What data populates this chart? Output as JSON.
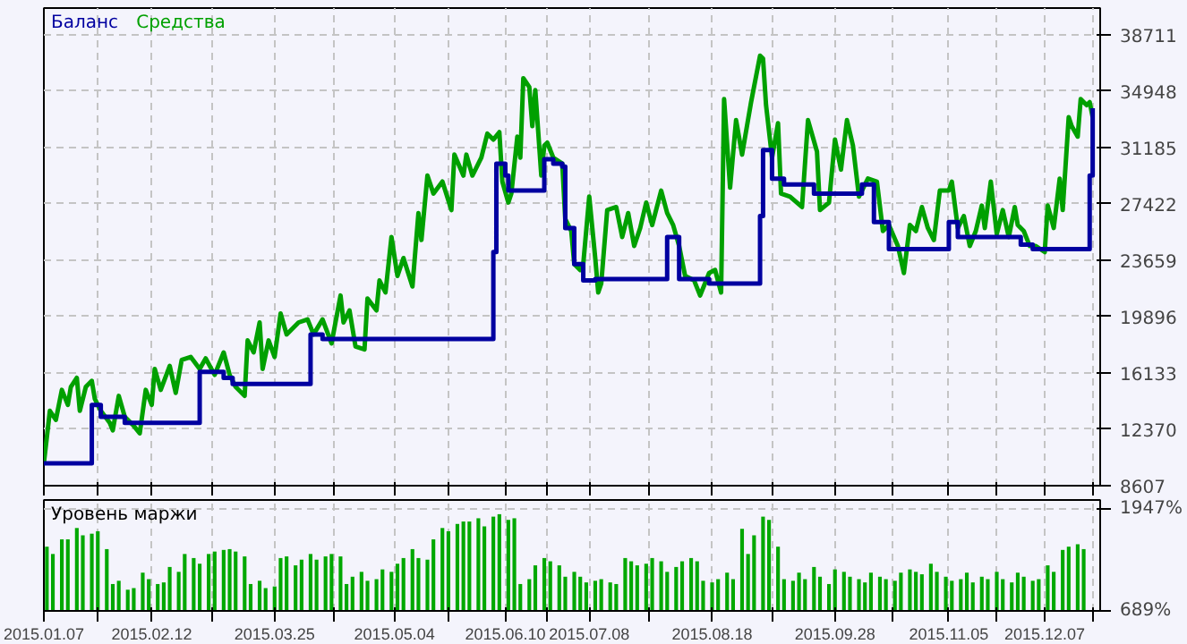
{
  "chart_data": [
    {
      "type": "line",
      "grid": true,
      "tick_labels": "y",
      "xlim": [
        "2015-01-07",
        "2015-12-25T12:00"
      ],
      "ylim": [
        8607,
        40480
      ],
      "xticks": [
        {
          "value": "2015-01-07",
          "label": null
        },
        {
          "value": "2015-01-25",
          "label": null
        },
        {
          "value": "2015-02-12",
          "label": null
        },
        {
          "value": "2015-03-04",
          "label": null
        },
        {
          "value": "2015-03-25",
          "label": null
        },
        {
          "value": "2015-04-14",
          "label": null
        },
        {
          "value": "2015-05-04",
          "label": null
        },
        {
          "value": "2015-05-22",
          "label": null
        },
        {
          "value": "2015-06-10",
          "label": null
        },
        {
          "value": "2015-06-24",
          "label": null
        },
        {
          "value": "2015-07-08",
          "label": null
        },
        {
          "value": "2015-07-28",
          "label": null
        },
        {
          "value": "2015-08-18",
          "label": null
        },
        {
          "value": "2015-09-07",
          "label": null
        },
        {
          "value": "2015-09-28",
          "label": null
        },
        {
          "value": "2015-10-17",
          "label": null
        },
        {
          "value": "2015-11-05",
          "label": null
        },
        {
          "value": "2015-11-21",
          "label": null
        },
        {
          "value": "2015-12-07",
          "label": null
        },
        {
          "value": "2015-12-23",
          "label": null
        }
      ],
      "yticks": [
        8607,
        12370,
        16133,
        19896,
        23659,
        27422,
        31185,
        34948,
        38711
      ],
      "series": [
        {
          "name": "Средства",
          "type": "line",
          "color": "#00a000",
          "x": [
            "2015-01-07",
            "2015-01-09",
            "2015-01-11",
            "2015-01-13",
            "2015-01-15",
            "2015-01-16",
            "2015-01-18",
            "2015-01-19",
            "2015-01-21",
            "2015-01-23",
            "2015-01-24",
            "2015-01-26",
            "2015-01-29",
            "2015-01-30",
            "2015-02-01",
            "2015-02-03",
            "2015-02-06",
            "2015-02-08",
            "2015-02-10",
            "2015-02-12",
            "2015-02-13",
            "2015-02-15",
            "2015-02-18",
            "2015-02-20",
            "2015-02-22",
            "2015-02-25",
            "2015-02-28",
            "2015-03-02",
            "2015-03-05",
            "2015-03-08",
            "2015-03-10",
            "2015-03-12",
            "2015-03-15",
            "2015-03-16",
            "2015-03-18",
            "2015-03-20",
            "2015-03-21",
            "2015-03-23",
            "2015-03-25",
            "2015-03-27",
            "2015-03-29",
            "2015-04-02",
            "2015-04-05",
            "2015-04-07",
            "2015-04-10",
            "2015-04-13",
            "2015-04-16",
            "2015-04-17",
            "2015-04-19",
            "2015-04-21",
            "2015-04-24",
            "2015-04-25",
            "2015-04-28",
            "2015-04-29",
            "2015-05-01",
            "2015-05-03",
            "2015-05-05",
            "2015-05-07",
            "2015-05-10",
            "2015-05-12",
            "2015-05-13",
            "2015-05-15",
            "2015-05-17",
            "2015-05-20",
            "2015-05-23",
            "2015-05-24",
            "2015-05-27",
            "2015-05-28",
            "2015-05-30",
            "2015-06-02",
            "2015-06-04",
            "2015-06-06",
            "2015-06-08",
            "2015-06-09",
            "2015-06-11",
            "2015-06-12",
            "2015-06-14",
            "2015-06-15",
            "2015-06-16",
            "2015-06-18",
            "2015-06-19",
            "2015-06-20",
            "2015-06-22",
            "2015-06-23",
            "2015-06-24",
            "2015-06-26",
            "2015-06-29",
            "2015-06-30",
            "2015-07-02",
            "2015-07-03",
            "2015-07-05",
            "2015-07-06",
            "2015-07-08",
            "2015-07-10",
            "2015-07-11",
            "2015-07-12",
            "2015-07-14",
            "2015-07-17",
            "2015-07-19",
            "2015-07-21",
            "2015-07-23",
            "2015-07-25",
            "2015-07-27",
            "2015-07-29",
            "2015-08-01",
            "2015-08-03",
            "2015-08-05",
            "2015-08-07",
            "2015-08-09",
            "2015-08-12",
            "2015-08-14",
            "2015-08-17",
            "2015-08-19",
            "2015-08-21",
            "2015-08-22",
            "2015-08-24",
            "2015-08-26",
            "2015-08-28",
            "2015-08-31",
            "2015-09-03",
            "2015-09-04",
            "2015-09-05",
            "2015-09-07",
            "2015-09-09",
            "2015-09-10",
            "2015-09-13",
            "2015-09-17",
            "2015-09-19",
            "2015-09-22",
            "2015-09-23",
            "2015-09-26",
            "2015-09-28",
            "2015-09-30",
            "2015-10-02",
            "2015-10-04",
            "2015-10-06",
            "2015-10-09",
            "2015-10-12",
            "2015-10-14",
            "2015-10-16",
            "2015-10-19",
            "2015-10-21",
            "2015-10-23",
            "2015-10-25",
            "2015-10-27",
            "2015-10-29",
            "2015-10-31",
            "2015-11-02",
            "2015-11-05",
            "2015-11-06",
            "2015-11-08",
            "2015-11-10",
            "2015-11-12",
            "2015-11-14",
            "2015-11-16",
            "2015-11-17",
            "2015-11-19",
            "2015-11-21",
            "2015-11-23",
            "2015-11-25",
            "2015-11-27",
            "2015-11-28",
            "2015-11-30",
            "2015-12-02",
            "2015-12-04",
            "2015-12-07",
            "2015-12-08",
            "2015-12-10",
            "2015-12-12",
            "2015-12-13",
            "2015-12-15",
            "2015-12-16",
            "2015-12-18",
            "2015-12-19",
            "2015-12-21",
            "2015-12-22",
            "2015-12-23"
          ],
          "values": [
            10100,
            13600,
            13000,
            15000,
            14000,
            15200,
            15800,
            13600,
            15200,
            15600,
            14400,
            13600,
            12800,
            12300,
            14600,
            13200,
            12600,
            12100,
            15000,
            14000,
            16400,
            15000,
            16600,
            14800,
            17000,
            17200,
            16400,
            17100,
            16000,
            17500,
            16000,
            15200,
            14600,
            18300,
            17500,
            19500,
            16400,
            18300,
            17200,
            20100,
            18700,
            19500,
            19700,
            18700,
            19700,
            18100,
            21300,
            19500,
            20300,
            17900,
            17700,
            21100,
            20300,
            22300,
            21500,
            25200,
            22600,
            23800,
            21900,
            26800,
            25000,
            29300,
            28100,
            28900,
            27000,
            30700,
            29300,
            30700,
            29300,
            30500,
            32100,
            31700,
            32200,
            28900,
            27500,
            28100,
            31900,
            30500,
            35800,
            35200,
            32600,
            35000,
            29300,
            31300,
            31500,
            30500,
            30100,
            26400,
            25600,
            23400,
            23000,
            23400,
            27900,
            23800,
            21500,
            22100,
            27000,
            27200,
            25200,
            26800,
            24600,
            25800,
            27500,
            26000,
            28300,
            26800,
            26000,
            24600,
            22600,
            22300,
            21300,
            22800,
            23000,
            21500,
            34400,
            28500,
            33000,
            30700,
            34200,
            37300,
            37100,
            34000,
            30500,
            32800,
            28100,
            27900,
            27200,
            33000,
            30900,
            27000,
            27500,
            31700,
            29700,
            33000,
            31300,
            27900,
            29100,
            28900,
            25600,
            26000,
            24600,
            22800,
            26000,
            25600,
            27200,
            25800,
            25000,
            28300,
            28300,
            28900,
            25800,
            26600,
            24600,
            25600,
            27300,
            25800,
            28900,
            25400,
            27000,
            25200,
            27200,
            26000,
            25600,
            24600,
            24600,
            24200,
            27300,
            25800,
            29100,
            27000,
            33200,
            32600,
            31900,
            34400,
            34000,
            34200,
            33200
          ]
        },
        {
          "name": "Баланс",
          "type": "step",
          "color": "#0000a0",
          "x": [
            "2015-01-07",
            "2015-01-23",
            "2015-01-26",
            "2015-02-03",
            "2015-02-28",
            "2015-03-08",
            "2015-03-11",
            "2015-04-06",
            "2015-04-10",
            "2015-06-06",
            "2015-06-07",
            "2015-06-10",
            "2015-06-11",
            "2015-06-23",
            "2015-06-26",
            "2015-06-29",
            "2015-06-30",
            "2015-07-03",
            "2015-07-06",
            "2015-07-10",
            "2015-08-03",
            "2015-08-07",
            "2015-08-17",
            "2015-09-03",
            "2015-09-04",
            "2015-09-07",
            "2015-09-11",
            "2015-09-21",
            "2015-10-07",
            "2015-10-11",
            "2015-10-16",
            "2015-11-05",
            "2015-11-08",
            "2015-11-29",
            "2015-12-03",
            "2015-12-22",
            "2015-12-23"
          ],
          "values": [
            10100,
            14000,
            13200,
            12800,
            16200,
            15800,
            15400,
            18700,
            18400,
            24200,
            30100,
            29300,
            28300,
            30400,
            30100,
            29900,
            25800,
            23400,
            22300,
            22400,
            25200,
            22400,
            22100,
            26600,
            31000,
            29100,
            28700,
            28100,
            28700,
            26200,
            24400,
            26200,
            25200,
            24700,
            24400,
            29300,
            33800
          ]
        }
      ]
    },
    {
      "type": "bar",
      "title": "Уровень маржи",
      "color": "#00a800",
      "grid": true,
      "xlim": [
        "2015-01-07",
        "2015-12-25T12:00"
      ],
      "ylim": [
        689,
        2055
      ],
      "xticks": [
        {
          "value": "2015-01-07",
          "label": "2015.01.07"
        },
        {
          "value": "2015-01-25",
          "label": null
        },
        {
          "value": "2015-02-12",
          "label": "2015.02.12"
        },
        {
          "value": "2015-03-04",
          "label": null
        },
        {
          "value": "2015-03-25",
          "label": "2015.03.25"
        },
        {
          "value": "2015-04-14",
          "label": null
        },
        {
          "value": "2015-05-04",
          "label": "2015.05.04"
        },
        {
          "value": "2015-05-22",
          "label": null
        },
        {
          "value": "2015-06-10",
          "label": "2015.06.10"
        },
        {
          "value": "2015-06-24",
          "label": null
        },
        {
          "value": "2015-07-08",
          "label": "2015.07.08"
        },
        {
          "value": "2015-07-28",
          "label": null
        },
        {
          "value": "2015-08-18",
          "label": "2015.08.18"
        },
        {
          "value": "2015-09-07",
          "label": null
        },
        {
          "value": "2015-09-28",
          "label": "2015.09.28"
        },
        {
          "value": "2015-10-17",
          "label": null
        },
        {
          "value": "2015-11-05",
          "label": "2015.11.05"
        },
        {
          "value": "2015-11-21",
          "label": null
        },
        {
          "value": "2015-12-07",
          "label": "2015.12.07"
        },
        {
          "value": "2015-12-23",
          "label": null
        }
      ],
      "yticks": [
        {
          "value": 689,
          "label": "689%"
        },
        {
          "value": 1947,
          "label": "1947%"
        }
      ],
      "x": [
        "2015-01-08",
        "2015-01-10",
        "2015-01-13",
        "2015-01-15",
        "2015-01-18",
        "2015-01-20",
        "2015-01-23",
        "2015-01-25",
        "2015-01-28",
        "2015-01-30",
        "2015-02-01",
        "2015-02-04",
        "2015-02-06",
        "2015-02-09",
        "2015-02-11",
        "2015-02-14",
        "2015-02-16",
        "2015-02-18",
        "2015-02-21",
        "2015-02-23",
        "2015-02-26",
        "2015-02-28",
        "2015-03-03",
        "2015-03-05",
        "2015-03-08",
        "2015-03-10",
        "2015-03-12",
        "2015-03-15",
        "2015-03-17",
        "2015-03-20",
        "2015-03-22",
        "2015-03-25",
        "2015-03-27",
        "2015-03-29",
        "2015-04-01",
        "2015-04-03",
        "2015-04-06",
        "2015-04-08",
        "2015-04-11",
        "2015-04-13",
        "2015-04-16",
        "2015-04-18",
        "2015-04-20",
        "2015-04-23",
        "2015-04-25",
        "2015-04-28",
        "2015-04-30",
        "2015-05-03",
        "2015-05-05",
        "2015-05-07",
        "2015-05-10",
        "2015-05-12",
        "2015-05-15",
        "2015-05-17",
        "2015-05-20",
        "2015-05-22",
        "2015-05-25",
        "2015-05-27",
        "2015-05-29",
        "2015-06-01",
        "2015-06-03",
        "2015-06-06",
        "2015-06-08",
        "2015-06-11",
        "2015-06-13",
        "2015-06-15",
        "2015-06-18",
        "2015-06-20",
        "2015-06-23",
        "2015-06-25",
        "2015-06-28",
        "2015-06-30",
        "2015-07-03",
        "2015-07-05",
        "2015-07-07",
        "2015-07-10",
        "2015-07-12",
        "2015-07-15",
        "2015-07-17",
        "2015-07-20",
        "2015-07-22",
        "2015-07-24",
        "2015-07-27",
        "2015-07-29",
        "2015-08-01",
        "2015-08-03",
        "2015-08-06",
        "2015-08-08",
        "2015-08-11",
        "2015-08-13",
        "2015-08-15",
        "2015-08-18",
        "2015-08-20",
        "2015-08-23",
        "2015-08-25",
        "2015-08-28",
        "2015-08-30",
        "2015-09-01",
        "2015-09-04",
        "2015-09-06",
        "2015-09-09",
        "2015-09-11",
        "2015-09-14",
        "2015-09-16",
        "2015-09-18",
        "2015-09-21",
        "2015-09-23",
        "2015-09-26",
        "2015-09-28",
        "2015-10-01",
        "2015-10-03",
        "2015-10-06",
        "2015-10-08",
        "2015-10-10",
        "2015-10-13",
        "2015-10-15",
        "2015-10-18",
        "2015-10-20",
        "2015-10-23",
        "2015-10-25",
        "2015-10-27",
        "2015-10-30",
        "2015-11-01",
        "2015-11-04",
        "2015-11-06",
        "2015-11-09",
        "2015-11-11",
        "2015-11-13",
        "2015-11-16",
        "2015-11-18",
        "2015-11-21",
        "2015-11-23",
        "2015-11-26",
        "2015-11-28",
        "2015-11-30",
        "2015-12-03",
        "2015-12-05",
        "2015-12-08",
        "2015-12-10",
        "2015-12-13",
        "2015-12-15",
        "2015-12-18",
        "2015-12-20"
      ],
      "values": [
        1480,
        1390,
        1570,
        1570,
        1710,
        1620,
        1640,
        1670,
        1450,
        1020,
        1060,
        950,
        970,
        1160,
        1080,
        1020,
        1040,
        1230,
        1170,
        1390,
        1340,
        1270,
        1390,
        1420,
        1440,
        1450,
        1420,
        1360,
        1020,
        1060,
        970,
        990,
        1340,
        1360,
        1250,
        1320,
        1390,
        1320,
        1360,
        1390,
        1360,
        1020,
        1110,
        1170,
        1060,
        1080,
        1200,
        1170,
        1270,
        1340,
        1450,
        1340,
        1320,
        1570,
        1710,
        1670,
        1760,
        1790,
        1790,
        1830,
        1730,
        1850,
        1880,
        1810,
        1830,
        1020,
        1080,
        1250,
        1340,
        1300,
        1250,
        1110,
        1170,
        1110,
        1040,
        1060,
        1080,
        1040,
        1020,
        1340,
        1300,
        1250,
        1270,
        1340,
        1300,
        1170,
        1230,
        1300,
        1340,
        1300,
        1060,
        1040,
        1080,
        1160,
        1080,
        1700,
        1390,
        1620,
        1850,
        1810,
        1480,
        1080,
        1060,
        1160,
        1080,
        1230,
        1110,
        1020,
        1200,
        1170,
        1110,
        1080,
        1040,
        1160,
        1110,
        1080,
        1060,
        1160,
        1200,
        1170,
        1140,
        1270,
        1170,
        1110,
        1060,
        1080,
        1160,
        1040,
        1110,
        1080,
        1170,
        1080,
        1040,
        1160,
        1110,
        1060,
        1080,
        1250,
        1170,
        1440,
        1480,
        1510,
        1450
      ]
    }
  ]
}
